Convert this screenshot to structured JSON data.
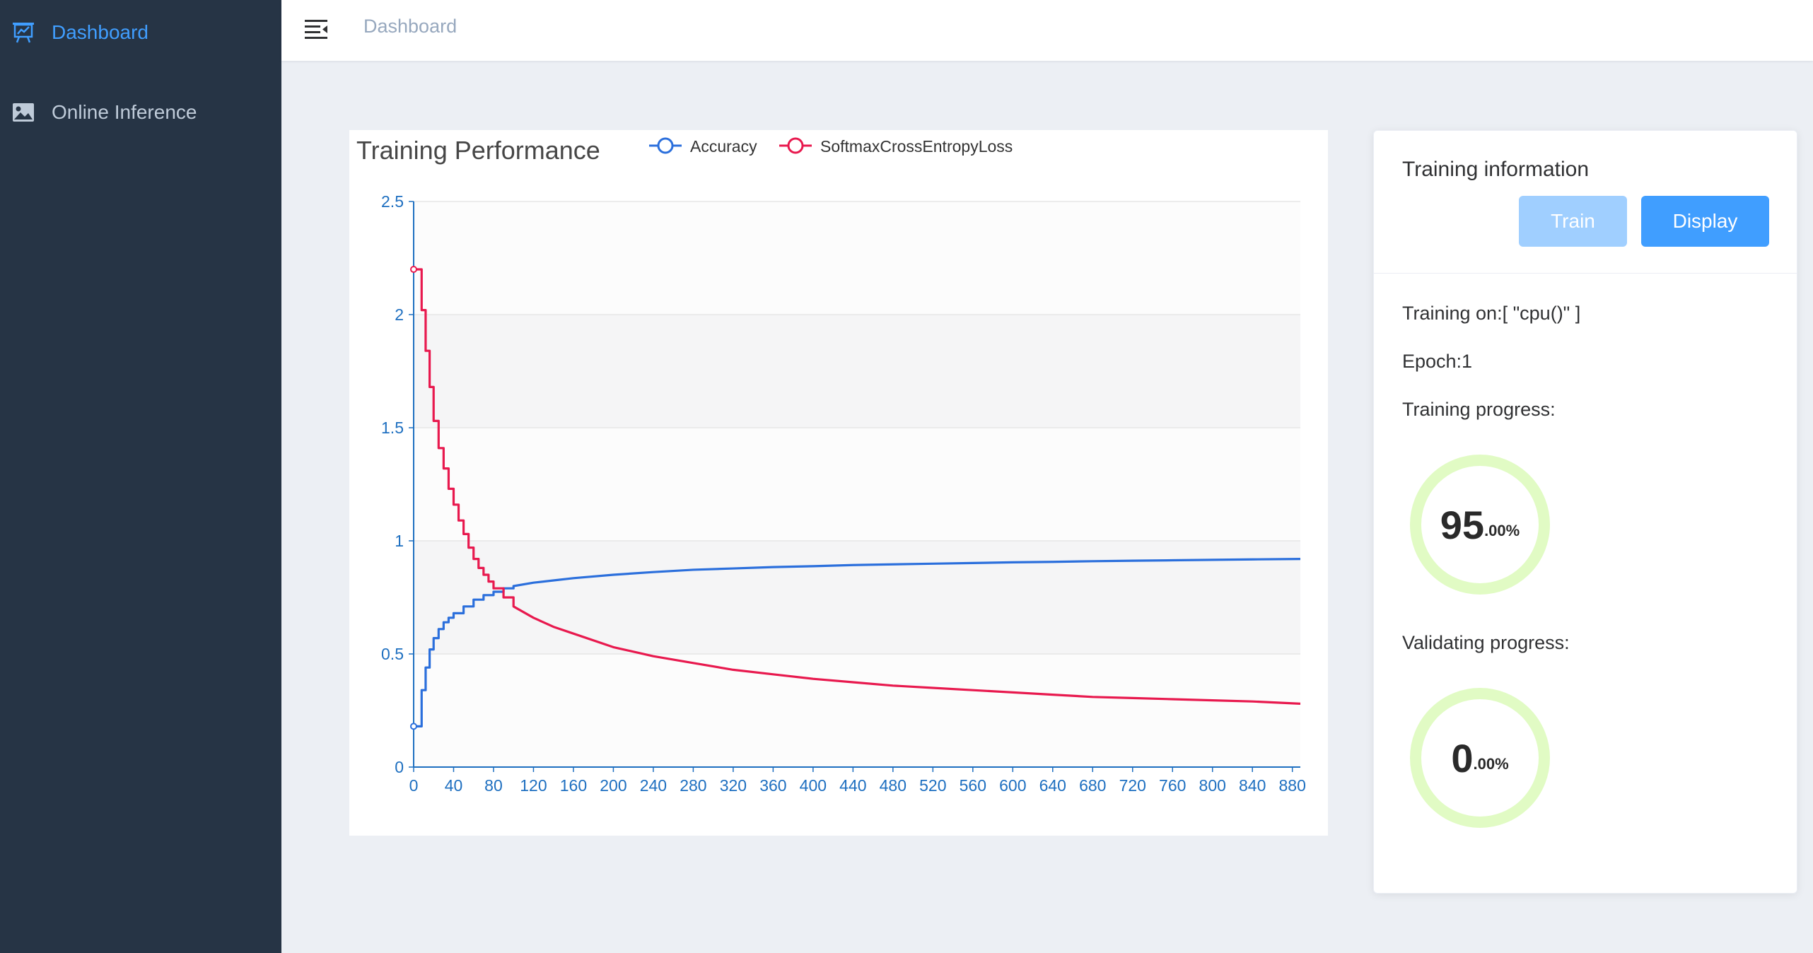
{
  "sidebar": {
    "items": [
      {
        "label": "Dashboard",
        "icon": "presentation-chart-icon",
        "active": true
      },
      {
        "label": "Online Inference",
        "icon": "picture-icon",
        "active": false
      }
    ]
  },
  "header": {
    "breadcrumb": "Dashboard"
  },
  "chart": {
    "title": "Training Performance",
    "legend": [
      "Accuracy",
      "SoftmaxCrossEntropyLoss"
    ]
  },
  "chart_data": {
    "type": "line",
    "title": "Training Performance",
    "xlabel": "",
    "ylabel": "",
    "xlim": [
      0,
      888
    ],
    "ylim": [
      0,
      2.5
    ],
    "x_ticks": [
      "0",
      "40",
      "80",
      "120",
      "160",
      "200",
      "240",
      "280",
      "320",
      "360",
      "400",
      "440",
      "480",
      "520",
      "560",
      "600",
      "640",
      "680",
      "720",
      "760",
      "800",
      "840",
      "880"
    ],
    "y_ticks": [
      "0",
      "0.5",
      "1",
      "1.5",
      "2",
      "2.5"
    ],
    "grid": true,
    "legend_position": "top",
    "series": [
      {
        "name": "Accuracy",
        "color": "#2b6fdc",
        "x": [
          0,
          4,
          8,
          12,
          16,
          20,
          25,
          30,
          35,
          40,
          50,
          60,
          70,
          80,
          90,
          100,
          120,
          140,
          160,
          200,
          240,
          280,
          320,
          360,
          400,
          440,
          480,
          520,
          560,
          600,
          640,
          680,
          720,
          760,
          800,
          840,
          888
        ],
        "values": [
          0.18,
          0.18,
          0.34,
          0.44,
          0.52,
          0.57,
          0.61,
          0.64,
          0.66,
          0.68,
          0.71,
          0.74,
          0.76,
          0.775,
          0.79,
          0.8,
          0.815,
          0.825,
          0.835,
          0.85,
          0.862,
          0.872,
          0.878,
          0.884,
          0.888,
          0.893,
          0.896,
          0.899,
          0.902,
          0.905,
          0.907,
          0.91,
          0.912,
          0.914,
          0.916,
          0.918,
          0.92
        ]
      },
      {
        "name": "SoftmaxCrossEntropyLoss",
        "color": "#e8194e",
        "x": [
          0,
          4,
          8,
          12,
          16,
          20,
          25,
          30,
          35,
          40,
          45,
          50,
          55,
          60,
          65,
          70,
          75,
          80,
          90,
          100,
          120,
          140,
          160,
          200,
          240,
          280,
          320,
          360,
          400,
          440,
          480,
          520,
          560,
          600,
          640,
          680,
          720,
          760,
          800,
          840,
          888
        ],
        "values": [
          2.2,
          2.2,
          2.02,
          1.84,
          1.68,
          1.53,
          1.41,
          1.32,
          1.23,
          1.16,
          1.09,
          1.03,
          0.97,
          0.92,
          0.88,
          0.85,
          0.82,
          0.79,
          0.75,
          0.71,
          0.66,
          0.62,
          0.59,
          0.53,
          0.49,
          0.46,
          0.43,
          0.41,
          0.39,
          0.375,
          0.36,
          0.35,
          0.34,
          0.33,
          0.32,
          0.31,
          0.305,
          0.3,
          0.295,
          0.29,
          0.28
        ]
      }
    ]
  },
  "info": {
    "title": "Training information",
    "train_label": "Train",
    "display_label": "Display",
    "training_on": "Training on:[ \"cpu()\" ]",
    "epoch": "Epoch:1",
    "training_progress_label": "Training progress:",
    "validating_progress_label": "Validating progress:",
    "training_progress": {
      "int": "95",
      "dec": ".00%",
      "fraction": 0.95
    },
    "validating_progress": {
      "int": "0",
      "dec": ".00%",
      "fraction": 0.0
    },
    "ring_color": "#e1fbc4"
  }
}
